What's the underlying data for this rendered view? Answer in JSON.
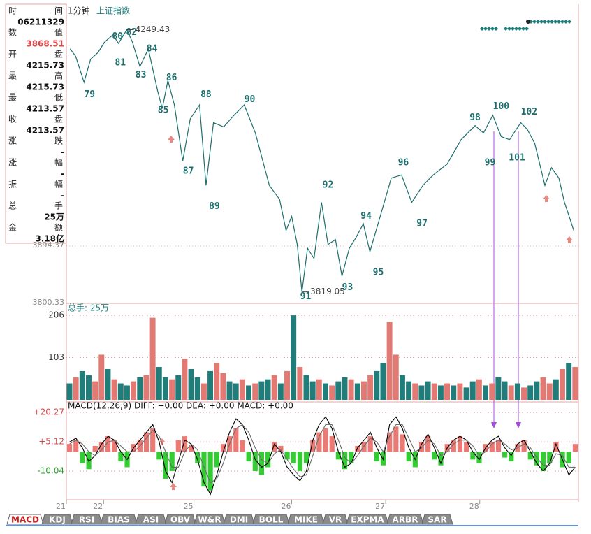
{
  "info_panel": {
    "rows": [
      {
        "label": "时间",
        "value": "06211329"
      },
      {
        "label": "数值",
        "value": "3868.51",
        "color": "#e04848"
      },
      {
        "label": "开盘",
        "value": "4215.73"
      },
      {
        "label": "最高",
        "value": "4215.73"
      },
      {
        "label": "最低",
        "value": "4213.57"
      },
      {
        "label": "收盘",
        "value": "4213.57"
      },
      {
        "label": "涨跌",
        "value": "-"
      },
      {
        "label": "涨幅",
        "value": "-"
      },
      {
        "label": "振幅",
        "value": "-"
      },
      {
        "label": "总手",
        "value": "25万"
      },
      {
        "label": "金额",
        "value": "3.18亿"
      }
    ]
  },
  "tabs": [
    "MACD",
    "KDJ",
    "RSI",
    "BIAS",
    "ASI",
    "OBV",
    "W&R",
    "DMI",
    "BOLL",
    "MIKE",
    "VR",
    "EXPMA",
    "ARBR",
    "SAR"
  ],
  "active_tab": 0,
  "chart_data": [
    {
      "type": "line",
      "title": "上证指数",
      "subtitle": "1分钟",
      "color": "#1d6f6e",
      "x": [
        0.04,
        0.1,
        0.19,
        0.26,
        0.34,
        0.41,
        0.5,
        0.56,
        0.65,
        0.71,
        0.79,
        0.88,
        0.98,
        1.03,
        1.09,
        1.16,
        1.25,
        1.33,
        1.43,
        1.5,
        1.58,
        1.69,
        1.8,
        1.91,
        2.03,
        2.18,
        2.29,
        2.36,
        2.42,
        2.48,
        2.53,
        2.59,
        2.66,
        2.74,
        2.81,
        2.89,
        2.96,
        3.04,
        3.11,
        3.19,
        3.26,
        3.38,
        3.49,
        3.6,
        3.71,
        3.83,
        3.94,
        4.09,
        4.24,
        4.39,
        4.48,
        4.58,
        4.67,
        4.76,
        4.88,
        4.95,
        5.03,
        5.14,
        5.21,
        5.29,
        5.35,
        5.4,
        5.45
      ],
      "values": [
        4218,
        4206,
        4163,
        4201,
        4212,
        4229,
        4241,
        4227,
        4249.43,
        4229,
        4189,
        4218,
        4149,
        4120,
        4166,
        4126,
        4034,
        4103,
        4126,
        3994,
        4097,
        4090,
        4109,
        4126,
        4080,
        3994,
        3971,
        3920,
        3943,
        3897,
        3819.05,
        3891,
        3874,
        3966,
        3897,
        3905,
        3845,
        3891,
        3908,
        3931,
        3885,
        3948,
        4006,
        4011,
        3966,
        3994,
        4011,
        4029,
        4069,
        4092,
        4080,
        4109,
        4074,
        4069,
        4097,
        4086,
        4063,
        3994,
        4023,
        4006,
        3966,
        3943,
        3920
      ],
      "xlim": [
        0,
        5.5
      ],
      "ylim": [
        3800.33,
        4289
      ],
      "yticks": [
        3800.33,
        3894.37
      ],
      "xticks": [
        {
          "value": 0,
          "label": "21"
        },
        {
          "value": 0.4,
          "label": "22"
        },
        {
          "value": 1.37,
          "label": "25"
        },
        {
          "value": 2.42,
          "label": "26"
        },
        {
          "value": 3.43,
          "label": "27"
        },
        {
          "value": 4.44,
          "label": "28"
        }
      ],
      "annotations": [
        {
          "x": 0.65,
          "y": 4249.43,
          "label": "4249.43"
        },
        {
          "x": 2.53,
          "y": 3819.05,
          "label": "3819.05"
        }
      ],
      "waves": [
        {
          "label": "79",
          "x": 0.25,
          "y": 4143
        },
        {
          "label": "80",
          "x": 0.55,
          "y": 4238
        },
        {
          "label": "81",
          "x": 0.58,
          "y": 4195
        },
        {
          "label": "82",
          "x": 0.7,
          "y": 4245
        },
        {
          "label": "83",
          "x": 0.8,
          "y": 4175
        },
        {
          "label": "84",
          "x": 0.92,
          "y": 4218
        },
        {
          "label": "85",
          "x": 1.04,
          "y": 4117
        },
        {
          "label": "86",
          "x": 1.13,
          "y": 4170
        },
        {
          "label": "87",
          "x": 1.31,
          "y": 4017
        },
        {
          "label": "88",
          "x": 1.5,
          "y": 4143
        },
        {
          "label": "89",
          "x": 1.59,
          "y": 3959
        },
        {
          "label": "90",
          "x": 1.97,
          "y": 4135
        },
        {
          "label": "91",
          "x": 2.57,
          "y": 3811
        },
        {
          "label": "92",
          "x": 2.81,
          "y": 3994
        },
        {
          "label": "93",
          "x": 3.02,
          "y": 3826
        },
        {
          "label": "94",
          "x": 3.22,
          "y": 3943
        },
        {
          "label": "95",
          "x": 3.35,
          "y": 3851
        },
        {
          "label": "96",
          "x": 3.62,
          "y": 4031
        },
        {
          "label": "97",
          "x": 3.82,
          "y": 3931
        },
        {
          "label": "98",
          "x": 4.39,
          "y": 4105
        },
        {
          "label": "99",
          "x": 4.55,
          "y": 4031
        },
        {
          "label": "100",
          "x": 4.67,
          "y": 4123
        },
        {
          "label": "101",
          "x": 4.84,
          "y": 4039
        },
        {
          "label": "102",
          "x": 4.97,
          "y": 4114
        }
      ]
    },
    {
      "type": "bar",
      "title": "总手: 25万",
      "values": [
        40,
        55,
        70,
        60,
        45,
        110,
        75,
        50,
        40,
        35,
        45,
        55,
        60,
        200,
        80,
        55,
        50,
        60,
        100,
        75,
        55,
        40,
        70,
        90,
        65,
        45,
        40,
        50,
        35,
        40,
        45,
        50,
        60,
        40,
        70,
        206,
        80,
        60,
        45,
        50,
        40,
        35,
        45,
        55,
        50,
        40,
        45,
        60,
        70,
        90,
        190,
        110,
        60,
        45,
        40,
        35,
        45,
        40,
        35,
        40,
        35,
        40,
        30,
        45,
        50,
        35,
        40,
        55,
        45,
        35,
        40,
        30,
        35,
        45,
        55,
        40,
        50,
        75,
        90,
        80
      ],
      "colors": [
        "#217d7a",
        "#e27a73",
        "#217d7a",
        "#217d7a",
        "#e27a73",
        "#e27a73",
        "#217d7a",
        "#e27a73",
        "#217d7a",
        "#217d7a",
        "#e27a73",
        "#217d7a",
        "#e27a73",
        "#e27a73",
        "#217d7a",
        "#217d7a",
        "#e27a73",
        "#217d7a",
        "#e27a73",
        "#217d7a",
        "#217d7a",
        "#e27a73",
        "#217d7a",
        "#e27a73",
        "#e27a73",
        "#217d7a",
        "#217d7a",
        "#e27a73",
        "#217d7a",
        "#e27a73",
        "#217d7a",
        "#217d7a",
        "#e27a73",
        "#217d7a",
        "#e27a73",
        "#217d7a",
        "#e27a73",
        "#217d7a",
        "#217d7a",
        "#e27a73",
        "#217d7a",
        "#e27a73",
        "#217d7a",
        "#217d7a",
        "#e27a73",
        "#217d7a",
        "#e27a73",
        "#e27a73",
        "#217d7a",
        "#217d7a",
        "#e27a73",
        "#e27a73",
        "#217d7a",
        "#217d7a",
        "#e27a73",
        "#217d7a",
        "#217d7a",
        "#e27a73",
        "#217d7a",
        "#e27a73",
        "#217d7a",
        "#e27a73",
        "#217d7a",
        "#217d7a",
        "#e27a73",
        "#217d7a",
        "#e27a73",
        "#217d7a",
        "#217d7a",
        "#e27a73",
        "#217d7a",
        "#e27a73",
        "#217d7a",
        "#217d7a",
        "#e27a73",
        "#e27a73",
        "#217d7a",
        "#e27a73",
        "#217d7a",
        "#e27a73"
      ],
      "ylim": [
        0,
        230
      ],
      "yticks": [
        103,
        206
      ]
    },
    {
      "type": "macd",
      "title": "MACD(12,26,9) DIFF: +0.00 DEA: +0.00 MACD: +0.00",
      "ylim": [
        -24.8,
        25
      ],
      "yticks": [
        {
          "value": 20.27,
          "label": "+20.27"
        },
        {
          "value": 5.12,
          "label": "+5.12"
        },
        {
          "value": -10.04,
          "label": "-10.04"
        }
      ],
      "up_color": "#ec7a74",
      "down_color": "#33cc33",
      "series": [
        {
          "name": "MACD",
          "values": [
            4,
            6,
            -6,
            -9,
            3,
            5,
            8,
            6,
            -5,
            -8,
            4,
            6,
            10,
            12,
            -4,
            -14,
            -10,
            6,
            8,
            3,
            -6,
            -18,
            -20,
            -8,
            4,
            8,
            12,
            6,
            -5,
            -10,
            -12,
            -8,
            5,
            3,
            -4,
            -6,
            -10,
            -6,
            6,
            10,
            12,
            8,
            -4,
            -9,
            -6,
            3,
            5,
            8,
            -5,
            -7,
            10,
            13,
            9,
            -5,
            -8,
            5,
            8,
            -4,
            -7,
            4,
            6,
            8,
            5,
            -4,
            -6,
            4,
            5,
            6,
            -3,
            -5,
            4,
            6,
            -4,
            -7,
            -10,
            -6,
            5,
            -8,
            -6,
            4
          ]
        },
        {
          "name": "DIFF",
          "color": "#000000",
          "values": [
            5,
            7,
            2,
            -5,
            -2,
            4,
            8,
            6,
            0,
            -4,
            2,
            6,
            10,
            14,
            5,
            -10,
            -16,
            -5,
            6,
            4,
            -4,
            -16,
            -22,
            -12,
            0,
            10,
            17,
            14,
            6,
            -4,
            -8,
            -6,
            4,
            0,
            -8,
            -12,
            -15,
            -10,
            6,
            14,
            18,
            12,
            0,
            -8,
            -6,
            2,
            6,
            10,
            2,
            -4,
            14,
            18,
            12,
            2,
            -4,
            4,
            9,
            2,
            -6,
            2,
            6,
            8,
            6,
            0,
            -4,
            2,
            6,
            8,
            2,
            -2,
            4,
            6,
            0,
            -6,
            -10,
            -6,
            4,
            -4,
            -12,
            -8
          ]
        },
        {
          "name": "DEA",
          "color": "#6b6b6b",
          "values": [
            4,
            6,
            4,
            0,
            -2,
            1,
            5,
            6,
            3,
            0,
            0,
            3,
            7,
            11,
            8,
            0,
            -8,
            -8,
            0,
            4,
            1,
            -8,
            -16,
            -14,
            -6,
            4,
            12,
            14,
            10,
            2,
            -4,
            -6,
            -1,
            1,
            -4,
            -9,
            -13,
            -12,
            -2,
            8,
            14,
            14,
            6,
            -3,
            -6,
            -2,
            3,
            7,
            5,
            0,
            8,
            14,
            14,
            7,
            0,
            2,
            6,
            4,
            -2,
            0,
            4,
            6,
            6,
            3,
            -2,
            0,
            4,
            6,
            4,
            1,
            2,
            4,
            2,
            -3,
            -7,
            -7,
            -1,
            -2,
            -8,
            -8
          ]
        }
      ]
    }
  ]
}
